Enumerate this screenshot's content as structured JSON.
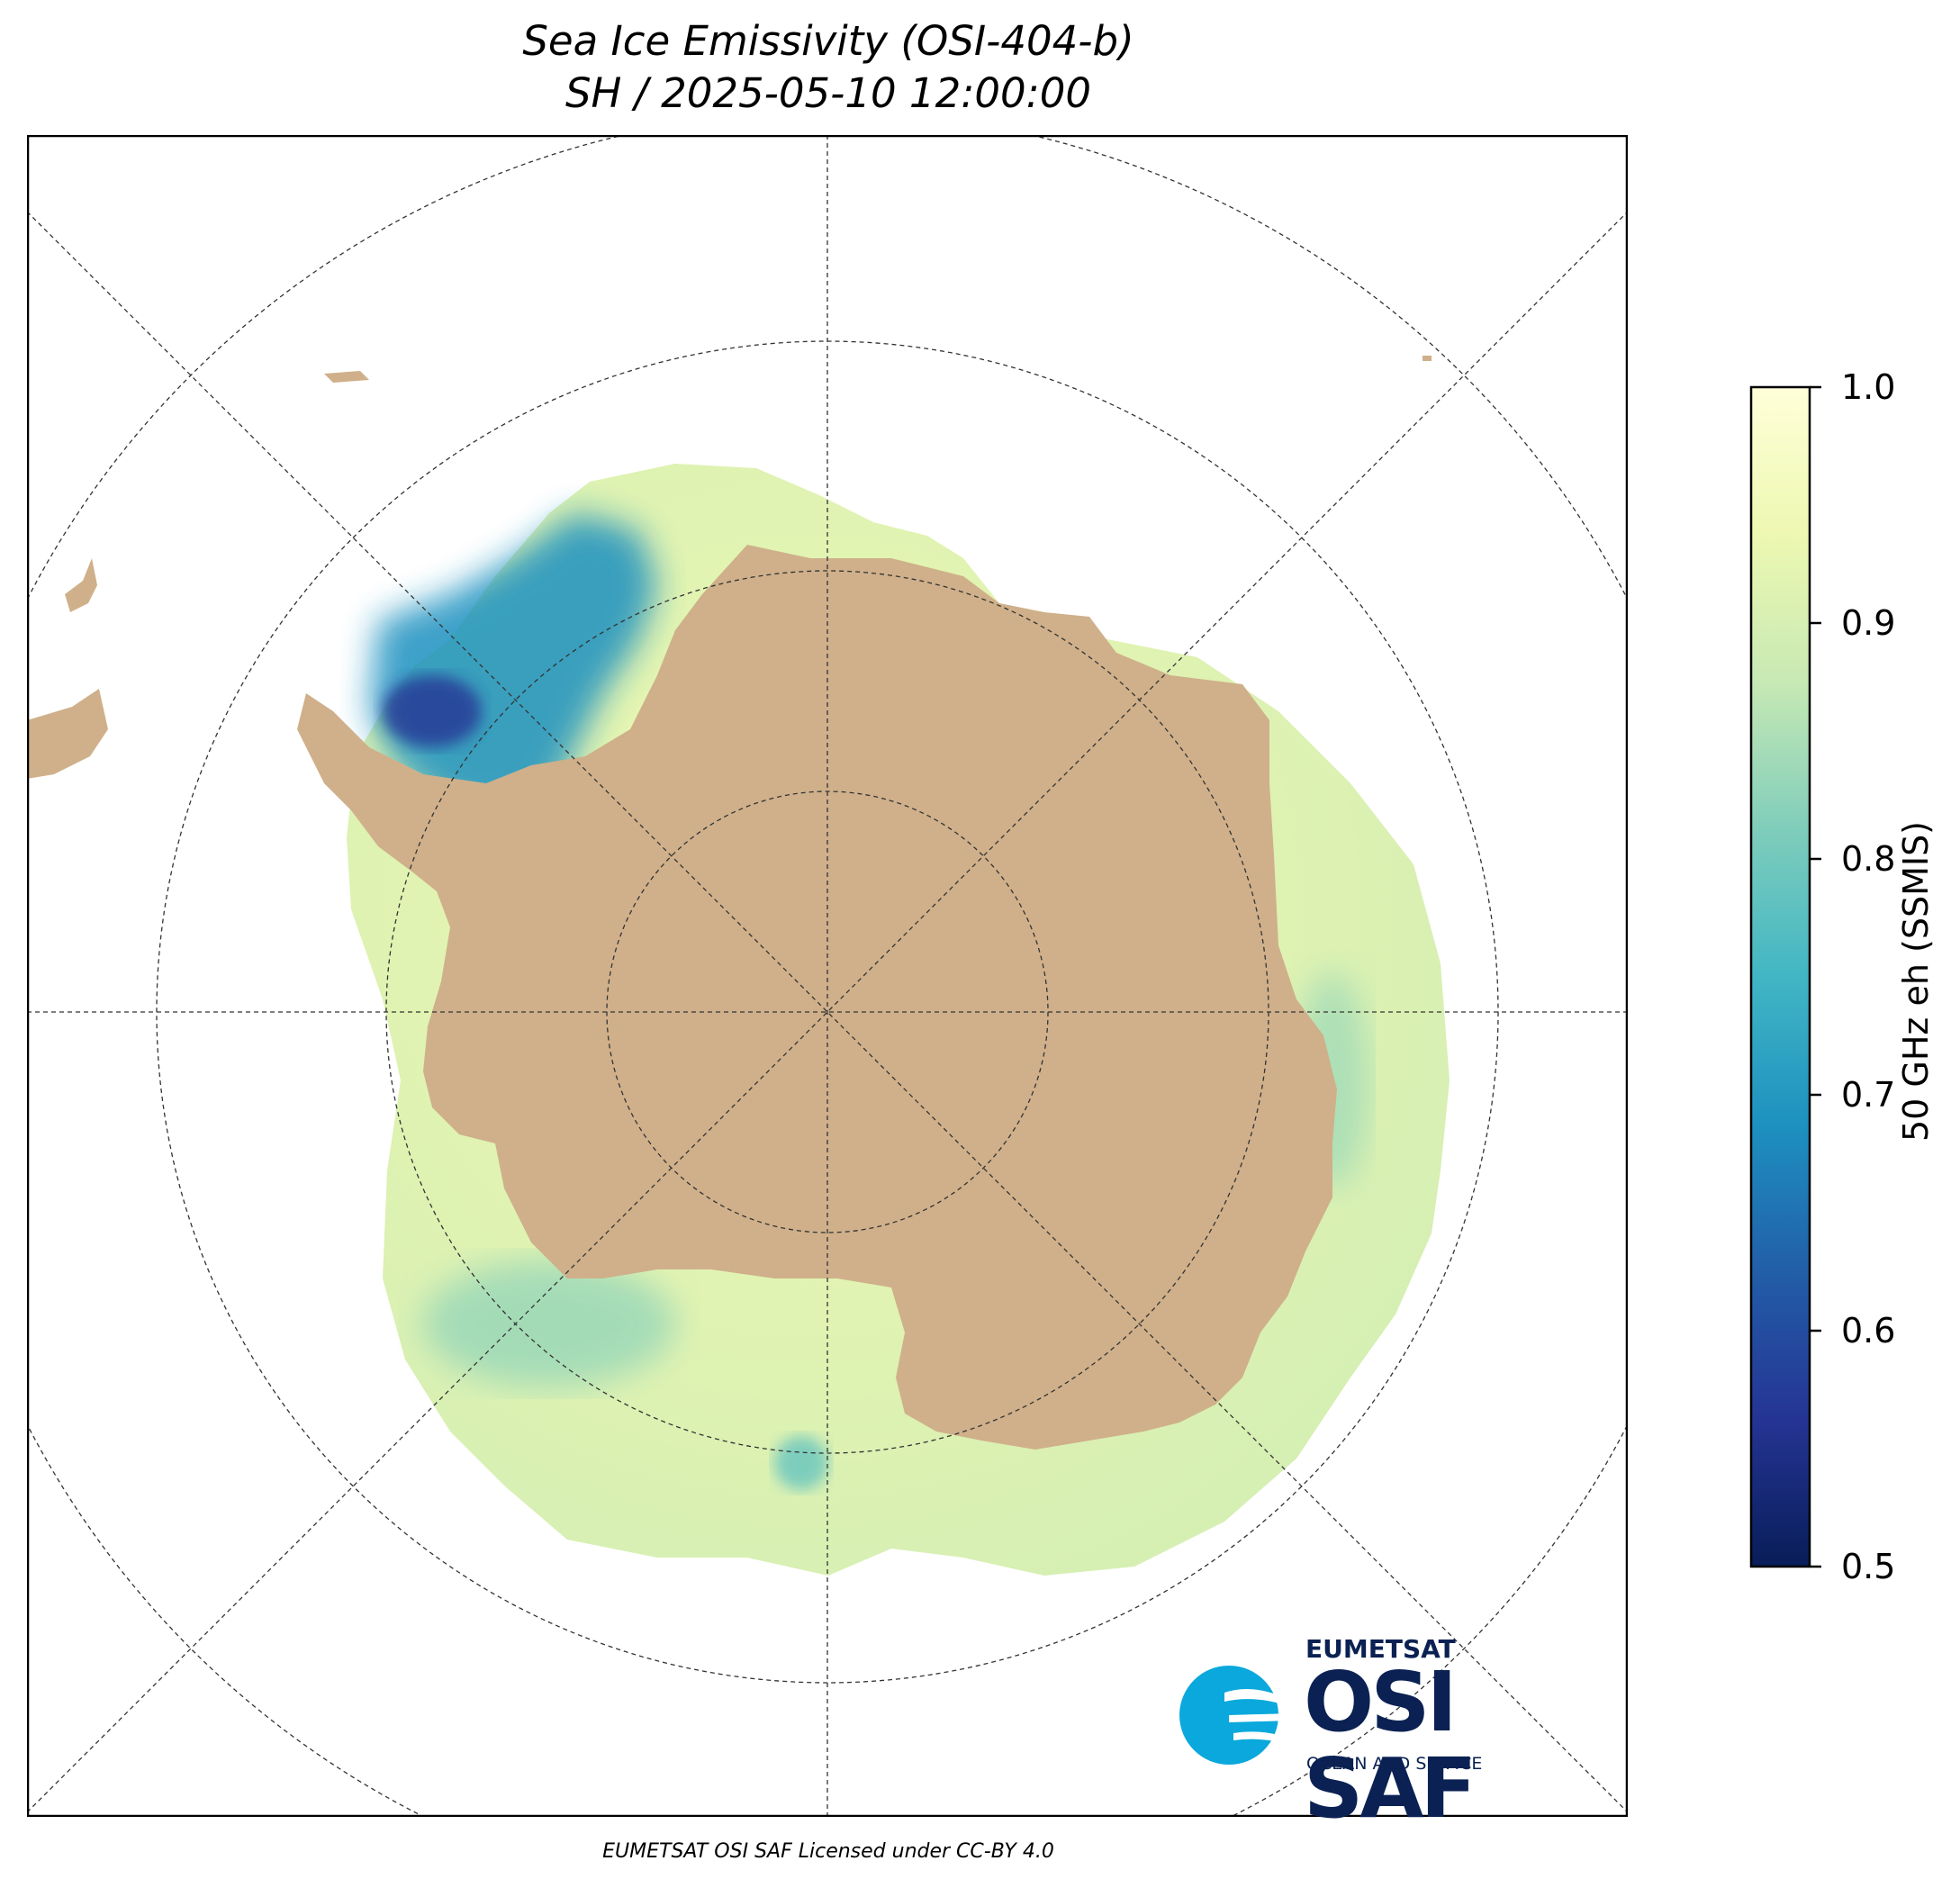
{
  "title": {
    "line1": "Sea Ice Emissivity (OSI-404-b)",
    "line2": "SH / 2025-05-10 12:00:00"
  },
  "map": {
    "projection": "south polar stereographic",
    "graticule": "dashed",
    "colors": {
      "land": "#cfb08a",
      "frame": "#000000",
      "gridline": "#333333",
      "background": "#ffffff"
    }
  },
  "colorbar": {
    "label": "50 GHz eh (SSMIS)",
    "ticks": [
      "0.5",
      "0.6",
      "0.7",
      "0.8",
      "0.9",
      "1.0"
    ],
    "range": [
      0.5,
      1.0
    ],
    "colormap": "YlGnBu_r",
    "stops": [
      "#081d58",
      "#253494",
      "#225ea8",
      "#1d91c0",
      "#41b6c4",
      "#7fcdbb",
      "#c7e9b4",
      "#edf8b1",
      "#ffffd9"
    ]
  },
  "logo": {
    "org": "EUMETSAT",
    "name": "OSI SAF",
    "tagline": "OCEAN AND SEA ICE",
    "icon": "osisaf-wave-icon",
    "colors": {
      "navy": "#0b2153",
      "cyan": "#0aa8dc"
    }
  },
  "footer": "EUMETSAT OSI SAF Licensed under CC-BY 4.0"
}
